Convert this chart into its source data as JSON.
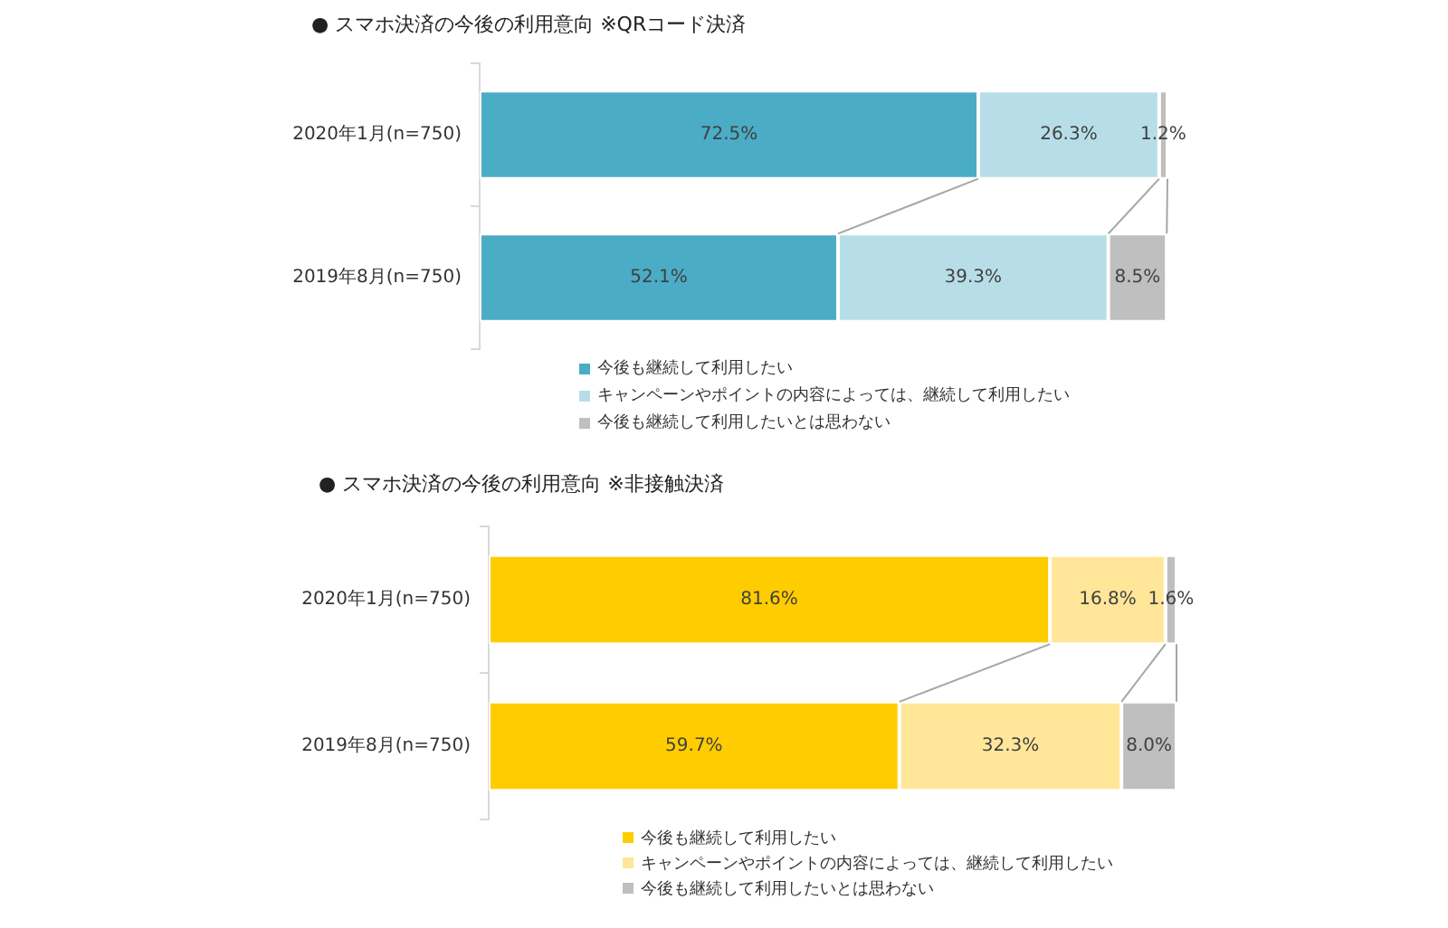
{
  "chart_data": [
    {
      "type": "bar",
      "orientation": "horizontal",
      "stacked": true,
      "title": "● スマホ決済の今後の利用意向 ※QRコード決済",
      "categories": [
        "2020年1月(n=750)",
        "2019年8月(n=750)"
      ],
      "series": [
        {
          "name": "今後も継続して利用したい",
          "color": "#4bacc6",
          "values": [
            72.5,
            52.1
          ],
          "value_labels": [
            "72.5%",
            "52.1%"
          ]
        },
        {
          "name": "キャンペーンやポイントの内容によっては、継続して利用したい",
          "color": "#b7dee8",
          "values": [
            26.3,
            39.3
          ],
          "value_labels": [
            "26.3%",
            "39.3%"
          ]
        },
        {
          "name": "今後も継続して利用したいとは思わない",
          "color": "#bfbfbf",
          "values": [
            1.2,
            8.5
          ],
          "value_labels": [
            "1.2%",
            "8.5%"
          ]
        }
      ],
      "xlim": [
        0,
        100
      ],
      "tick_labels": "y",
      "legend": "bottom"
    },
    {
      "type": "bar",
      "orientation": "horizontal",
      "stacked": true,
      "title": "● スマホ決済の今後の利用意向 ※非接触決済",
      "categories": [
        "2020年1月(n=750)",
        "2019年8月(n=750)"
      ],
      "series": [
        {
          "name": "今後も継続して利用したい",
          "color": "#ffcc00",
          "values": [
            81.6,
            59.7
          ],
          "value_labels": [
            "81.6%",
            "59.7%"
          ]
        },
        {
          "name": "キャンペーンやポイントの内容によっては、継続して利用したい",
          "color": "#ffe699",
          "values": [
            16.8,
            32.3
          ],
          "value_labels": [
            "16.8%",
            "32.3%"
          ]
        },
        {
          "name": "今後も継続して利用したいとは思わない",
          "color": "#bfbfbf",
          "values": [
            1.6,
            8.0
          ],
          "value_labels": [
            "1.6%",
            "8.0%"
          ]
        }
      ],
      "xlim": [
        0,
        100
      ],
      "tick_labels": "y",
      "legend": "bottom"
    }
  ]
}
